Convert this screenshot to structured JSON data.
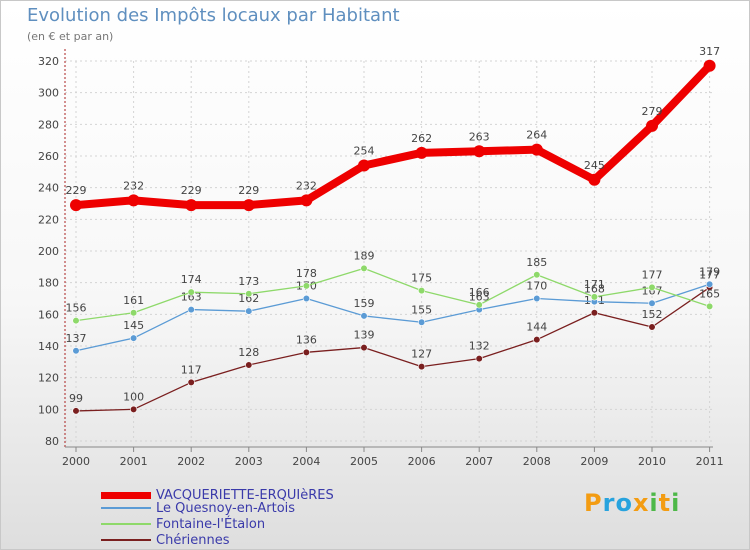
{
  "header": {
    "title": "Evolution des Impôts locaux par Habitant",
    "subtitle": "(en € et par an)"
  },
  "logo": {
    "letters": [
      "P",
      "r",
      "o",
      "x",
      "i",
      "t",
      "i"
    ],
    "colors": [
      "#f39c12",
      "#27a3de",
      "#27a3de",
      "#f39c12",
      "#4db848",
      "#f39c12",
      "#4db848"
    ]
  },
  "chart_data": {
    "type": "line",
    "title": "Evolution des Impôts locaux par Habitant",
    "subtitle": "(en € et par an)",
    "xlabel": "",
    "ylabel": "",
    "x": [
      "2000",
      "2001",
      "2002",
      "2003",
      "2004",
      "2005",
      "2006",
      "2007",
      "2008",
      "2009",
      "2010",
      "2011"
    ],
    "ylim": [
      80,
      320
    ],
    "yticks": [
      "80",
      "100",
      "120",
      "140",
      "160",
      "180",
      "200",
      "220",
      "240",
      "260",
      "280",
      "300",
      "320"
    ],
    "grid": true,
    "legend_position": "bottom-left",
    "series": [
      {
        "name": "VACQUERIETTE-ERQUIèRES",
        "color": "#ee0000",
        "legend_text_color": "#3a3aaa",
        "emphasis": "bold",
        "values": [
          229,
          232,
          229,
          229,
          232,
          254,
          262,
          263,
          264,
          245,
          279,
          317
        ],
        "labels": [
          "229",
          "232",
          "229",
          "229",
          "232",
          "254",
          "262",
          "263",
          "264",
          "245",
          "279",
          "317"
        ]
      },
      {
        "name": "Le Quesnoy-en-Artois",
        "color": "#5b9bd5",
        "legend_text_color": "#3a3aaa",
        "emphasis": "normal",
        "values": [
          137,
          145,
          163,
          162,
          170,
          159,
          155,
          163,
          170,
          168,
          167,
          179
        ],
        "labels": [
          "137",
          "145",
          "163",
          "162",
          "170",
          "159",
          "155",
          "163",
          "170",
          "168",
          "167",
          "179"
        ]
      },
      {
        "name": "Fontaine-l'Étalon",
        "color": "#8ed96a",
        "legend_text_color": "#3a3aaa",
        "emphasis": "normal",
        "values": [
          156,
          161,
          174,
          173,
          178,
          189,
          175,
          166,
          185,
          171,
          177,
          165
        ],
        "labels": [
          "156",
          "161",
          "174",
          "173",
          "178",
          "189",
          "175",
          "166",
          "185",
          "171",
          "177",
          "165"
        ]
      },
      {
        "name": "Chériennes",
        "color": "#7a1f1f",
        "legend_text_color": "#3a3aaa",
        "emphasis": "normal",
        "values": [
          99,
          100,
          117,
          128,
          136,
          139,
          127,
          132,
          144,
          161,
          152,
          177
        ],
        "labels": [
          "99",
          "100",
          "117",
          "128",
          "136",
          "139",
          "127",
          "132",
          "144",
          "161",
          "152",
          "177"
        ]
      }
    ]
  }
}
